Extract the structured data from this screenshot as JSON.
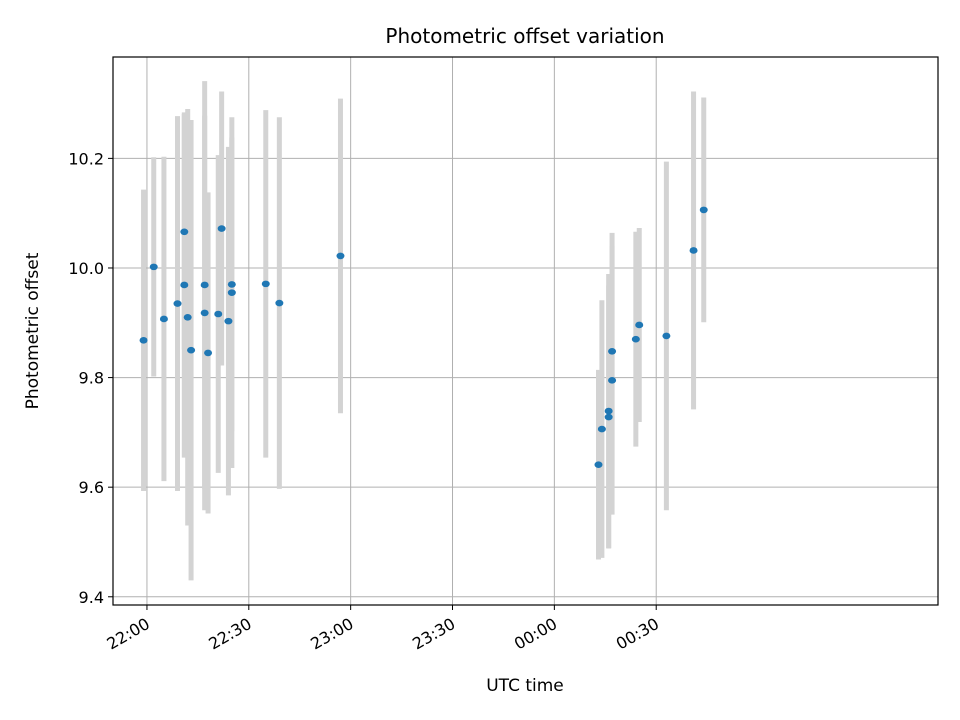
{
  "chart_data": {
    "type": "scatter",
    "title": "Photometric offset variation",
    "xlabel": "UTC time",
    "ylabel": "Photometric offset",
    "xlim": [
      "21:50",
      "01:53"
    ],
    "ylim": [
      9.385,
      10.385
    ],
    "x_ticks": [
      "22:00",
      "22:30",
      "23:00",
      "23:30",
      "00:00",
      "00:30"
    ],
    "y_ticks": [
      9.4,
      9.6,
      9.8,
      10.0,
      10.2
    ],
    "grid": true,
    "marker_color": "#1f77b4",
    "errorbar_color": "#d3d3d3",
    "points": [
      {
        "x": "21:59",
        "y": 9.868,
        "err": 0.275
      },
      {
        "x": "22:02",
        "y": 10.002,
        "err": 0.2
      },
      {
        "x": "22:05",
        "y": 9.907,
        "err": 0.296
      },
      {
        "x": "22:09",
        "y": 9.935,
        "err": 0.342
      },
      {
        "x": "22:11",
        "y": 10.066,
        "err": 0.215
      },
      {
        "x": "22:11",
        "y": 9.969,
        "err": 0.315
      },
      {
        "x": "22:12",
        "y": 9.91,
        "err": 0.38
      },
      {
        "x": "22:13",
        "y": 9.85,
        "err": 0.42
      },
      {
        "x": "22:17",
        "y": 9.969,
        "err": 0.372
      },
      {
        "x": "22:17",
        "y": 9.918,
        "err": 0.36
      },
      {
        "x": "22:18",
        "y": 9.845,
        "err": 0.293
      },
      {
        "x": "22:21",
        "y": 9.916,
        "err": 0.29
      },
      {
        "x": "22:22",
        "y": 10.072,
        "err": 0.25
      },
      {
        "x": "22:24",
        "y": 9.903,
        "err": 0.318
      },
      {
        "x": "22:25",
        "y": 9.955,
        "err": 0.32
      },
      {
        "x": "22:25",
        "y": 9.97,
        "err": 0.268
      },
      {
        "x": "22:35",
        "y": 9.971,
        "err": 0.317
      },
      {
        "x": "22:39",
        "y": 9.936,
        "err": 0.339
      },
      {
        "x": "22:57",
        "y": 10.022,
        "err": 0.287
      },
      {
        "x": "00:13",
        "y": 9.641,
        "err": 0.173
      },
      {
        "x": "00:14",
        "y": 9.706,
        "err": 0.235
      },
      {
        "x": "00:16",
        "y": 9.728,
        "err": 0.24
      },
      {
        "x": "00:16",
        "y": 9.739,
        "err": 0.25
      },
      {
        "x": "00:17",
        "y": 9.795,
        "err": 0.245
      },
      {
        "x": "00:17",
        "y": 9.848,
        "err": 0.216
      },
      {
        "x": "00:24",
        "y": 9.87,
        "err": 0.196
      },
      {
        "x": "00:25",
        "y": 9.896,
        "err": 0.177
      },
      {
        "x": "00:33",
        "y": 9.876,
        "err": 0.318
      },
      {
        "x": "00:41",
        "y": 10.032,
        "err": 0.29
      },
      {
        "x": "00:44",
        "y": 10.106,
        "err": 0.205
      }
    ]
  }
}
